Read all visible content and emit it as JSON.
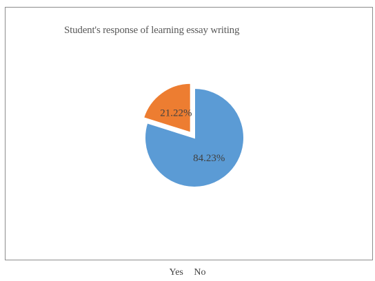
{
  "chart_data": {
    "type": "pie",
    "title": "Student's response of learning essay writing",
    "categories": [
      "Yes",
      "No"
    ],
    "values": [
      84.23,
      21.22
    ],
    "data_labels": [
      "84.23%",
      "21.22%"
    ],
    "exploded": "No",
    "legend_position": "bottom",
    "colors": {
      "Yes": "#5b9bd5",
      "No": "#ed7d31"
    }
  }
}
